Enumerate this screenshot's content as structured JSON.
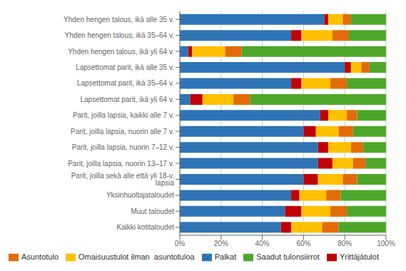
{
  "chart_data": {
    "type": "bar",
    "orientation": "horizontal",
    "stacked": true,
    "grid": true,
    "legend": "bottom",
    "categories": [
      "Yhden hengen talous, ikä alle 35 v.",
      "Yhden hengen talous, ikä 35–64 v.",
      "Yhden hengen talous, ikä yli 64 v.",
      "Lapsettomat parit, ikä alle 35 v.",
      "Lapsettomat parit, ikä 35–64 v.",
      "Lapsettomat parit, ikä yli 64 v.",
      "Parit, joilla lapsia, kaikki alle 7 v.",
      "Parit, joilla lapsia, nuorin alle 7 v.",
      "Parit, joilla lapsia, nuorin 7–12 v.",
      "Parit, joilla lapsia, nuorin 13–17 v.",
      "Parit, joilla sekä alle että yli 18-v. lapsia",
      "Yksinhuoltajataloudet",
      "Muut taloudet",
      "Kaikki kotitaloudet"
    ],
    "series": [
      {
        "name": "Palkat",
        "color": "#2E74B5",
        "values": [
          70,
          54,
          4,
          80,
          54,
          5,
          68,
          60,
          67,
          67,
          60,
          54,
          51,
          49
        ]
      },
      {
        "name": "Yrittäjätulot",
        "color": "#C00000",
        "values": [
          2,
          5,
          2,
          3,
          5,
          6,
          4,
          6,
          5,
          7,
          7,
          4,
          8,
          5
        ]
      },
      {
        "name": "Omaisuustulot ilman  asuntotuloa",
        "color": "#FFC000",
        "values": [
          7,
          15,
          16,
          5,
          14,
          15,
          9,
          11,
          11,
          10,
          12,
          13,
          14,
          15
        ]
      },
      {
        "name": "Asuntotulo",
        "color": "#E36C09",
        "values": [
          4,
          8,
          8,
          4,
          8,
          8,
          5,
          7,
          6,
          6,
          7,
          7,
          8,
          8
        ]
      },
      {
        "name": "Saadut tulonsiirrot",
        "color": "#4EA72A",
        "values": [
          17,
          18,
          70,
          8,
          19,
          66,
          14,
          16,
          11,
          10,
          14,
          22,
          19,
          23
        ]
      }
    ],
    "xlim": [
      0,
      100
    ],
    "xticks": [
      {
        "value": 0,
        "label": "0%"
      },
      {
        "value": 20,
        "label": "20%"
      },
      {
        "value": 40,
        "label": "40%"
      },
      {
        "value": 60,
        "label": "60%"
      },
      {
        "value": 80,
        "label": "80%"
      },
      {
        "value": 100,
        "label": "100%"
      }
    ]
  }
}
